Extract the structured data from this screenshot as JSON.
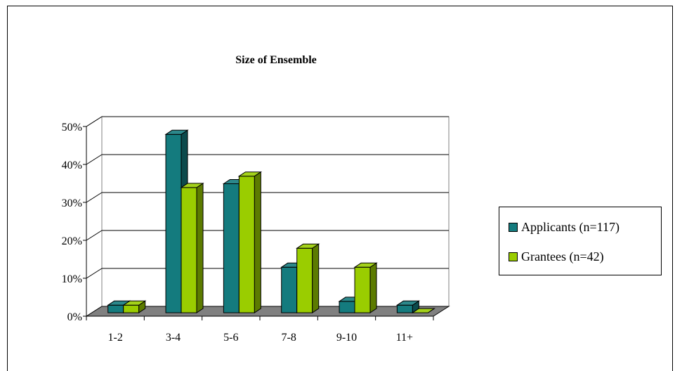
{
  "chart_data": {
    "type": "bar",
    "title": "Size of Ensemble",
    "categories": [
      "1-2",
      "3-4",
      "5-6",
      "7-8",
      "9-10",
      "11+"
    ],
    "series": [
      {
        "name": "Applicants (n=117)",
        "values": [
          2,
          47,
          34,
          12,
          3,
          2
        ],
        "color": "#147b7e"
      },
      {
        "name": "Grantees (n=42)",
        "values": [
          2,
          33,
          36,
          17,
          12,
          0
        ],
        "color": "#9acd00"
      }
    ],
    "yticks": [
      "0%",
      "10%",
      "20%",
      "30%",
      "40%",
      "50%"
    ],
    "ylim": [
      0,
      50
    ],
    "grid": true,
    "legend_position": "right",
    "floor_color": "#808080"
  },
  "legend": [
    {
      "label": "Applicants (n=117)",
      "color": "#147b7e"
    },
    {
      "label": "Grantees (n=42)",
      "color": "#9acd00"
    }
  ]
}
